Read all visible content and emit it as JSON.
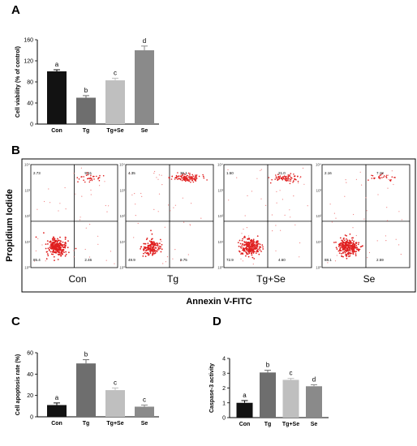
{
  "panels": {
    "A": "A",
    "B": "B",
    "C": "C",
    "D": "D"
  },
  "chart_data": [
    {
      "panel": "A",
      "type": "bar",
      "categories": [
        "Con",
        "Tg",
        "Tg+Se",
        "Se"
      ],
      "values": [
        100,
        50,
        83,
        140
      ],
      "errors": [
        3,
        4,
        4,
        8
      ],
      "significance": [
        "a",
        "b",
        "c",
        "d"
      ],
      "colors": [
        "#121212",
        "#6e6e6e",
        "#bfbfbf",
        "#8a8a8a"
      ],
      "title": "",
      "xlabel": "",
      "ylabel": "Cell viability (% of control)",
      "ylim": [
        0,
        160
      ],
      "yticks": [
        0,
        40,
        80,
        120,
        160
      ]
    },
    {
      "panel": "B",
      "type": "scatter",
      "xlabel": "Annexin V-FITC",
      "ylabel": "Propidium Iodide",
      "samples": [
        {
          "name": "Con",
          "UL": "2.73",
          "UR": "9.61",
          "LL": "85.4",
          "LR": "2.46"
        },
        {
          "name": "Tg",
          "UL": "4.35",
          "UR": "36.1",
          "LL": "49.9",
          "LR": "9.75"
        },
        {
          "name": "Tg+Se",
          "UL": "1.50",
          "UR": "21.0",
          "LL": "72.9",
          "LR": "4.60"
        },
        {
          "name": "Se",
          "UL": "2.16",
          "UR": "7.18",
          "LL": "88.1",
          "LR": "2.59"
        }
      ]
    },
    {
      "panel": "C",
      "type": "bar",
      "categories": [
        "Con",
        "Tg",
        "Tg+Se",
        "Se"
      ],
      "values": [
        11,
        50,
        25,
        9.5
      ],
      "errors": [
        2,
        3.5,
        2,
        1.5
      ],
      "significance": [
        "a",
        "b",
        "c",
        "c"
      ],
      "colors": [
        "#121212",
        "#6e6e6e",
        "#bfbfbf",
        "#8a8a8a"
      ],
      "title": "",
      "xlabel": "",
      "ylabel": "Cell apoptosis rate (%)",
      "ylim": [
        0,
        60
      ],
      "yticks": [
        0,
        20,
        40,
        60
      ]
    },
    {
      "panel": "D",
      "type": "bar",
      "categories": [
        "Con",
        "Tg",
        "Tg+Se",
        "Se"
      ],
      "values": [
        1.0,
        3.05,
        2.55,
        2.12
      ],
      "errors": [
        0.15,
        0.15,
        0.1,
        0.1
      ],
      "significance": [
        "a",
        "b",
        "c",
        "d"
      ],
      "colors": [
        "#121212",
        "#6e6e6e",
        "#bfbfbf",
        "#8a8a8a"
      ],
      "title": "",
      "xlabel": "",
      "ylabel": "Caspase-3 activity",
      "ylim": [
        0,
        4
      ],
      "yticks": [
        0,
        1,
        2,
        3,
        4
      ]
    }
  ]
}
